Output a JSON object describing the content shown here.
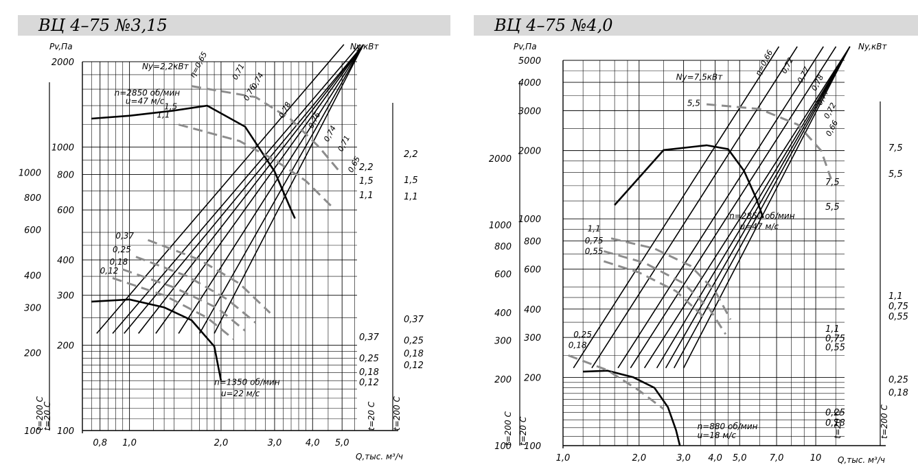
{
  "charts": [
    {
      "title": "ВЦ 4–75 №3,15",
      "ylabel": "Pv,Па",
      "y2label": "Ny,кВт",
      "xlabel": "Q,тыс. м³/ч",
      "temp_hot": "t=200 С",
      "temp_cold": "t=20 С",
      "x_ticks": [
        "0,8",
        "1,0",
        "2,0",
        "3,0",
        "4,0",
        "5,0"
      ],
      "x_values": [
        0.8,
        1.0,
        2.0,
        3.0,
        4.0,
        5.0
      ],
      "p_ticks": [
        "100",
        "200",
        "300",
        "400",
        "600",
        "800",
        "1000",
        "2000"
      ],
      "p_values": [
        100,
        200,
        300,
        400,
        600,
        800,
        1000,
        2000
      ],
      "p200_ticks": [
        "100",
        "200",
        "300",
        "400",
        "600",
        "800",
        "1000"
      ],
      "p200_values": [
        100,
        200,
        300,
        400,
        600,
        800,
        1000
      ],
      "ny_cold_labels": [
        "2,2",
        "1,5",
        "1,1",
        "0,37",
        "0,25",
        "0,18",
        "0,12"
      ],
      "ny_hot_labels": [
        "2,2",
        "1,5",
        "1,1",
        "0,37",
        "0,25",
        "0,18",
        "0,12"
      ],
      "efficiency_labels": [
        "η=0,65",
        "0,71",
        "0,74",
        "0,76",
        "0,78",
        "0,76",
        "0,74",
        "0,71",
        "0,65"
      ],
      "power_labels_high": [
        "Ny=2,2кВт",
        "1,5",
        "1,1"
      ],
      "power_labels_low": [
        "0,37",
        "0,25",
        "0,18",
        "0,12"
      ],
      "curve_high_label": "n=2850 об/мин",
      "curve_high_u": "u=47 м/с",
      "curve_low_label": "n=1350 об/мин",
      "curve_low_u": "u=22 м/с",
      "chart_data": {
        "type": "line",
        "title": "ВЦ 4–75 №3,15",
        "x_scale": "log",
        "y_scale": "log",
        "xlim": [
          0.7,
          5.6
        ],
        "ylim": [
          100,
          2000
        ],
        "series": [
          {
            "name": "n=2850 об/мин",
            "x": [
              0.75,
              1.0,
              1.4,
              1.8,
              2.4,
              3.0,
              3.4,
              3.5
            ],
            "y": [
              1260,
              1290,
              1345,
              1400,
              1180,
              820,
              600,
              560
            ]
          },
          {
            "name": "n=1350 об/мин",
            "x": [
              0.75,
              1.0,
              1.3,
              1.6,
              1.9,
              2.0
            ],
            "y": [
              285,
              290,
              272,
              245,
              198,
              150
            ]
          }
        ]
      }
    },
    {
      "title": "ВЦ 4–75 №4,0",
      "ylabel": "Pv,Па",
      "y2label": "Ny,кВт",
      "xlabel": "Q,тыс. м³/ч",
      "temp_hot": "t=200 С",
      "temp_cold": "t=20 С",
      "x_ticks": [
        "1,0",
        "2,0",
        "3,0",
        "4,0",
        "5,0",
        "7,0",
        "10"
      ],
      "x_values": [
        1.0,
        2.0,
        3.0,
        4.0,
        5.0,
        7.0,
        10
      ],
      "p_ticks": [
        "100",
        "200",
        "300",
        "400",
        "600",
        "800",
        "1000",
        "2000",
        "3000",
        "4000",
        "5000"
      ],
      "p_values": [
        100,
        200,
        300,
        400,
        600,
        800,
        1000,
        2000,
        3000,
        4000,
        5000
      ],
      "p200_ticks": [
        "100",
        "200",
        "300",
        "400",
        "600",
        "800",
        "1000",
        "2000"
      ],
      "p200_values": [
        100,
        200,
        300,
        400,
        600,
        800,
        1000,
        2000
      ],
      "ny_cold_labels": [
        "7,5",
        "5,5",
        "1,1",
        "0,75",
        "0,55",
        "0,25",
        "0,18"
      ],
      "ny_hot_labels": [
        "7,5",
        "5,5",
        "1,1",
        "0,75",
        "0,55",
        "0,25",
        "0,18"
      ],
      "efficiency_labels": [
        "η=0,66",
        "0,72",
        "0,77",
        "0,78",
        "0,77",
        "0,72",
        "0,66"
      ],
      "power_labels_high": [
        "Ny=7,5кВт",
        "5,5"
      ],
      "power_labels_low": [
        "1,1",
        "0,75",
        "0,55",
        "0,25",
        "0,18"
      ],
      "curve_high_label": "n=2850 об/мин",
      "curve_high_u": "u=47 м/с",
      "curve_low_label": "n=880 об/мин",
      "curve_low_u": "u=18 м/с",
      "chart_data": {
        "type": "line",
        "title": "ВЦ 4–75 №4,0",
        "x_scale": "log",
        "y_scale": "log",
        "xlim": [
          1.0,
          13
        ],
        "ylim": [
          100,
          5000
        ],
        "series": [
          {
            "name": "n=2850 об/мин",
            "x": [
              1.6,
              2.5,
              3.7,
              4.5,
              5.2,
              5.8,
              6.2
            ],
            "y": [
              1150,
              2010,
              2110,
              2030,
              1630,
              1240,
              1010
            ]
          },
          {
            "name": "n=880 об/мин",
            "x": [
              1.2,
              1.5,
              1.9,
              2.3,
              2.6,
              2.8,
              2.9
            ],
            "y": [
              212,
              214,
              200,
              180,
              148,
              117,
              100
            ]
          }
        ]
      }
    }
  ]
}
